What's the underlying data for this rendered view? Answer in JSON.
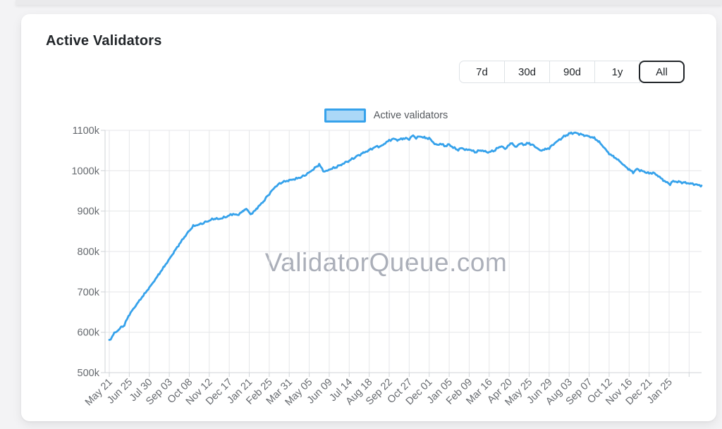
{
  "page": {
    "title": "Active Validators"
  },
  "range_buttons": {
    "items": [
      {
        "label": "7d",
        "active": false
      },
      {
        "label": "30d",
        "active": false
      },
      {
        "label": "90d",
        "active": false
      },
      {
        "label": "1y",
        "active": false
      },
      {
        "label": "All",
        "active": true
      }
    ]
  },
  "watermark": "ValidatorQueue.com",
  "colors": {
    "line": "#36A2EB",
    "legend_fill": "rgba(54,162,235,0.42)",
    "grid": "#e5e6e8",
    "axis_border": "#cfd3d7",
    "tick_text": "#65696e"
  },
  "chart_data": {
    "type": "line",
    "title": "Active Validators",
    "legend_position": "top-center",
    "grid": true,
    "y_unit": "validators (thousands, shown as k)",
    "y_min_k": 500,
    "y_max_k": 1100,
    "y_tick_labels": [
      "1100k",
      "1000k",
      "900k",
      "800k",
      "700k",
      "600k",
      "500k"
    ],
    "x_tick_labels": [
      "May 21",
      "Jun 25",
      "Jul 30",
      "Sep 03",
      "Oct 08",
      "Nov 12",
      "Dec 17",
      "Jan 21",
      "Feb 25",
      "Mar 31",
      "May 05",
      "Jun 09",
      "Jul 14",
      "Aug 18",
      "Sep 22",
      "Oct 27",
      "Dec 01",
      "Jan 05",
      "Feb 09",
      "Mar 16",
      "Apr 20",
      "May 25",
      "Jun 29",
      "Aug 03",
      "Sep 07",
      "Oct 12",
      "Nov 16",
      "Dec 21",
      "Jan 25"
    ],
    "x_tick_interval_days": 35,
    "series": [
      {
        "name": "Active validators",
        "color": "#36A2EB",
        "points_unit": "[x in tick-units from May 21, value in thousands]",
        "points": [
          [
            0,
            579
          ],
          [
            0.25,
            597
          ],
          [
            0.45,
            606
          ],
          [
            0.6,
            612
          ],
          [
            0.75,
            618
          ],
          [
            1,
            644
          ],
          [
            1.25,
            661
          ],
          [
            1.5,
            678
          ],
          [
            1.75,
            694
          ],
          [
            2,
            710
          ],
          [
            2.25,
            727
          ],
          [
            2.5,
            745
          ],
          [
            2.75,
            763
          ],
          [
            3,
            781
          ],
          [
            3.25,
            800
          ],
          [
            3.5,
            818
          ],
          [
            3.75,
            835
          ],
          [
            4,
            851
          ],
          [
            4.2,
            863
          ],
          [
            4.5,
            867
          ],
          [
            4.8,
            872
          ],
          [
            5,
            877
          ],
          [
            5.3,
            882
          ],
          [
            5.45,
            880
          ],
          [
            5.8,
            885
          ],
          [
            6,
            889
          ],
          [
            6.2,
            893
          ],
          [
            6.4,
            890
          ],
          [
            6.7,
            900
          ],
          [
            6.85,
            907
          ],
          [
            7,
            895
          ],
          [
            7.15,
            894
          ],
          [
            7.4,
            908
          ],
          [
            7.7,
            923
          ],
          [
            8,
            943
          ],
          [
            8.3,
            960
          ],
          [
            8.6,
            971
          ],
          [
            9,
            976
          ],
          [
            9.4,
            981
          ],
          [
            9.7,
            986
          ],
          [
            10,
            996
          ],
          [
            10.3,
            1007
          ],
          [
            10.5,
            1016
          ],
          [
            10.7,
            1000
          ],
          [
            10.85,
            998
          ],
          [
            11,
            1003
          ],
          [
            11.3,
            1008
          ],
          [
            11.6,
            1015
          ],
          [
            12,
            1025
          ],
          [
            12.4,
            1036
          ],
          [
            12.7,
            1044
          ],
          [
            13,
            1051
          ],
          [
            13.2,
            1056
          ],
          [
            13.4,
            1061
          ],
          [
            13.55,
            1059
          ],
          [
            13.8,
            1068
          ],
          [
            14,
            1075
          ],
          [
            14.2,
            1079
          ],
          [
            14.45,
            1076
          ],
          [
            14.7,
            1080
          ],
          [
            15,
            1079
          ],
          [
            15.2,
            1087
          ],
          [
            15.35,
            1081
          ],
          [
            15.55,
            1085
          ],
          [
            15.8,
            1081
          ],
          [
            16,
            1080
          ],
          [
            16.2,
            1071
          ],
          [
            16.35,
            1063
          ],
          [
            16.55,
            1067
          ],
          [
            16.8,
            1061
          ],
          [
            17,
            1065
          ],
          [
            17.2,
            1057
          ],
          [
            17.45,
            1052
          ],
          [
            17.65,
            1056
          ],
          [
            17.85,
            1051
          ],
          [
            18,
            1053
          ],
          [
            18.3,
            1046
          ],
          [
            18.6,
            1051
          ],
          [
            18.8,
            1047
          ],
          [
            19,
            1046
          ],
          [
            19.3,
            1051
          ],
          [
            19.55,
            1061
          ],
          [
            19.8,
            1055
          ],
          [
            20,
            1063
          ],
          [
            20.15,
            1070
          ],
          [
            20.3,
            1057
          ],
          [
            20.5,
            1067
          ],
          [
            20.75,
            1065
          ],
          [
            21,
            1068
          ],
          [
            21.3,
            1060
          ],
          [
            21.55,
            1050
          ],
          [
            21.8,
            1053
          ],
          [
            22,
            1056
          ],
          [
            22.3,
            1069
          ],
          [
            22.6,
            1080
          ],
          [
            22.85,
            1088
          ],
          [
            23.1,
            1093
          ],
          [
            23.3,
            1094
          ],
          [
            23.5,
            1091
          ],
          [
            23.75,
            1088
          ],
          [
            24,
            1085
          ],
          [
            24.25,
            1081
          ],
          [
            24.5,
            1071
          ],
          [
            24.75,
            1057
          ],
          [
            25,
            1042
          ],
          [
            25.25,
            1034
          ],
          [
            25.5,
            1025
          ],
          [
            25.75,
            1013
          ],
          [
            26,
            1003
          ],
          [
            26.2,
            996
          ],
          [
            26.4,
            1004
          ],
          [
            26.6,
            1000
          ],
          [
            26.8,
            997
          ],
          [
            27,
            993
          ],
          [
            27.2,
            995
          ],
          [
            27.45,
            987
          ],
          [
            27.7,
            977
          ],
          [
            27.9,
            970
          ],
          [
            28.05,
            967
          ],
          [
            28.2,
            974
          ],
          [
            28.5,
            972
          ],
          [
            28.8,
            970
          ],
          [
            29.1,
            968
          ],
          [
            29.3,
            966
          ],
          [
            29.62,
            963
          ]
        ]
      }
    ]
  }
}
